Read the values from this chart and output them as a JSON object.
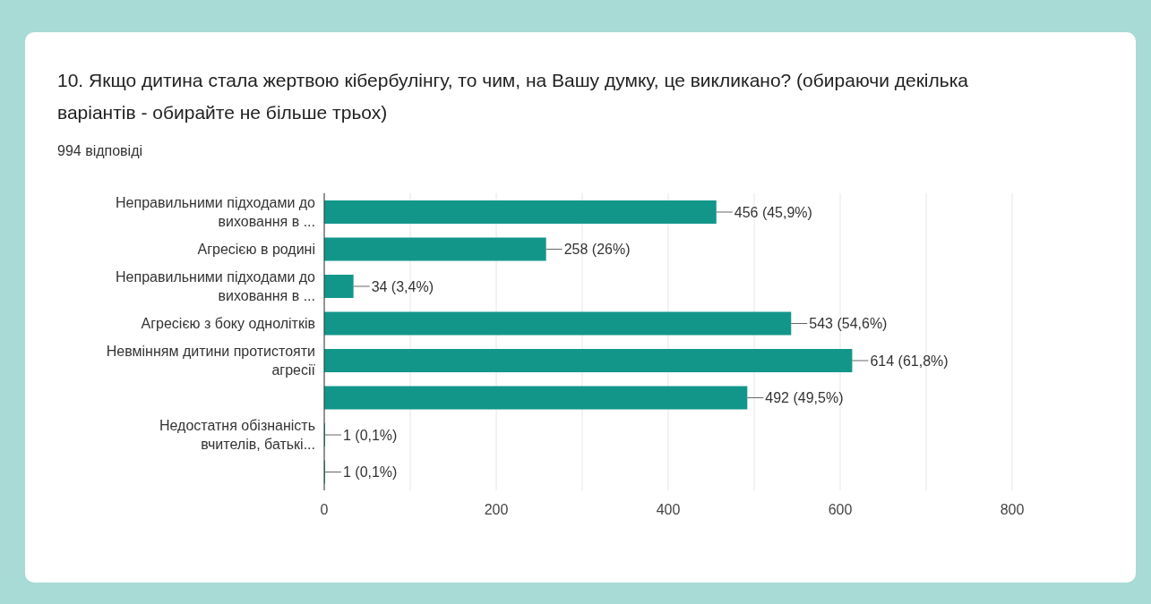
{
  "chart_data": {
    "type": "bar",
    "orientation": "horizontal",
    "title": "10. Якщо дитина стала жертвою кібербулінгу, то чим, на Вашу думку, це викликано? (обираючи декілька варіантів - обирайте не більше трьох)",
    "subtitle": "994 відповіді",
    "categories": [
      "Неправильними підходами до виховання в ...",
      "Агресією в родині",
      "Неправильними підходами до виховання в ...",
      "Агресією з боку однолітків",
      "Невмінням дитини протистояти агресії",
      null,
      "Недостатня обізнаність вчителів, батькі...",
      null
    ],
    "values": [
      456,
      258,
      34,
      543,
      614,
      492,
      1,
      1
    ],
    "value_labels": [
      "456 (45,9%)",
      "258 (26%)",
      "34 (3,4%)",
      "543 (54,6%)",
      "614 (61,8%)",
      "492 (49,5%)",
      "1 (0,1%)",
      "1 (0,1%)"
    ],
    "color": "#12968a",
    "xlim": [
      0,
      800
    ],
    "xticks": [
      0,
      {
        "value": 100,
        "label": null
      },
      200,
      {
        "value": 300,
        "label": null
      },
      400,
      {
        "value": 500,
        "label": null
      },
      600,
      {
        "value": 700,
        "label": null
      },
      800
    ],
    "grid": "x",
    "legend": false
  }
}
